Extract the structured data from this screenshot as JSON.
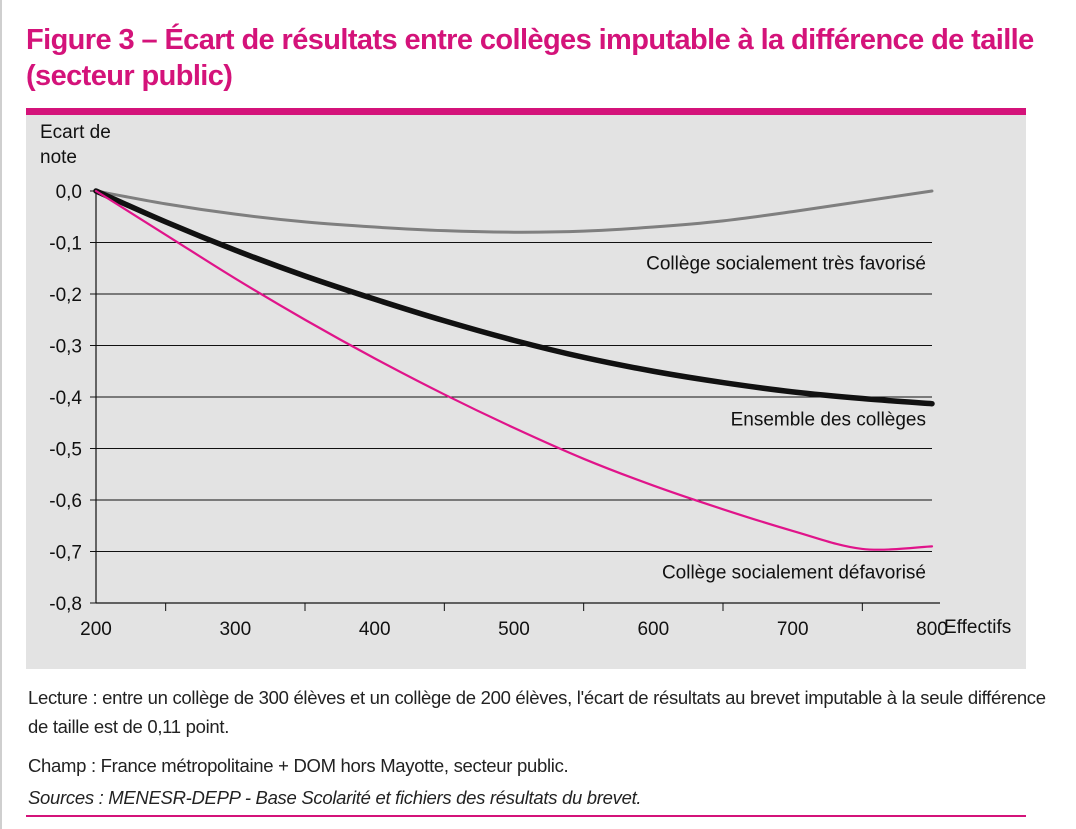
{
  "title": "Figure 3 – Écart de résultats entre collèges imputable à la différence de taille (secteur public)",
  "notes": {
    "lecture": "Lecture : entre un collège de 300 élèves et un collège de 200 élèves, l'écart de résultats au brevet imputable à la seule différence de taille est de 0,11 point.",
    "champ": "Champ : France métropolitaine + DOM hors Mayotte, secteur public.",
    "sources": "Sources : MENESR-DEPP - Base Scolarité et fichiers des résultats du brevet."
  },
  "colors": {
    "accent": "#d4137a",
    "plot_background": "#e3e3e3",
    "series_favorise": "#7f7f7f",
    "series_ensemble": "#111111",
    "series_defavorise": "#e0148a"
  },
  "chart_data": {
    "type": "line",
    "title": "",
    "xlabel": "Effectifs",
    "ylabel": "Ecart de note",
    "xlim": [
      200,
      800
    ],
    "ylim": [
      -0.8,
      0.0
    ],
    "x_ticks": [
      "200",
      "300",
      "400",
      "500",
      "600",
      "700",
      "800"
    ],
    "y_ticks": [
      "0,0",
      "-0,1",
      "-0,2",
      "-0,3",
      "-0,4",
      "-0,5",
      "-0,6",
      "-0,7",
      "-0,8"
    ],
    "grid": "horizontal",
    "series": [
      {
        "name": "Collège socialement très favorisé",
        "x": [
          200,
          250,
          300,
          350,
          400,
          450,
          500,
          550,
          600,
          650,
          700,
          750,
          800
        ],
        "values": [
          0.0,
          -0.025,
          -0.045,
          -0.06,
          -0.07,
          -0.077,
          -0.08,
          -0.078,
          -0.07,
          -0.058,
          -0.04,
          -0.02,
          0.0
        ]
      },
      {
        "name": "Ensemble des collèges",
        "x": [
          200,
          250,
          300,
          350,
          400,
          450,
          500,
          550,
          600,
          650,
          700,
          750,
          800
        ],
        "values": [
          0.0,
          -0.06,
          -0.115,
          -0.165,
          -0.21,
          -0.252,
          -0.29,
          -0.323,
          -0.35,
          -0.372,
          -0.39,
          -0.403,
          -0.413
        ]
      },
      {
        "name": "Collège socialement défavorisé",
        "x": [
          200,
          250,
          300,
          350,
          400,
          450,
          500,
          550,
          600,
          650,
          700,
          750,
          800
        ],
        "values": [
          0.0,
          -0.085,
          -0.17,
          -0.25,
          -0.325,
          -0.395,
          -0.46,
          -0.52,
          -0.572,
          -0.618,
          -0.66,
          -0.695,
          -0.69
        ]
      }
    ],
    "series_labels": [
      "Collège socialement très favorisé",
      "Ensemble des collèges",
      "Collège socialement défavorisé"
    ]
  }
}
